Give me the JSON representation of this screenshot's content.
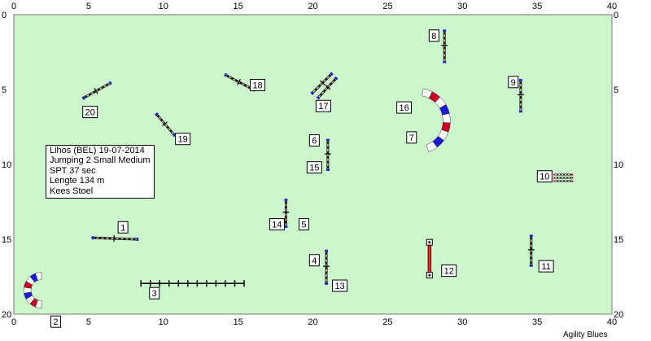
{
  "course": {
    "bg_color": "#ccf7cc",
    "x_range": [
      0,
      40
    ],
    "y_range": [
      0,
      20
    ],
    "x_ticks": [
      "0",
      "5",
      "10",
      "15",
      "20",
      "25",
      "30",
      "35",
      "40"
    ],
    "y_ticks": [
      "0",
      "5",
      "10",
      "15",
      "20"
    ]
  },
  "info": {
    "line1": "Lihos (BEL) 19-07-2014",
    "line2": "Jumping 2 Small Medium",
    "line3": "SPT 37 sec",
    "line4": "Lengte 134 m",
    "line5": "Kees Stoel"
  },
  "credit": "Agility Blues",
  "obstacles": [
    {
      "type": "jump",
      "x1": 5.2,
      "y1": 14.9,
      "x2": 8.2,
      "y2": 15.0
    },
    {
      "type": "jump",
      "x1": 4.6,
      "y1": 5.6,
      "x2": 6.4,
      "y2": 4.6
    },
    {
      "type": "jump",
      "x1": 9.5,
      "y1": 6.6,
      "x2": 10.7,
      "y2": 8.0
    },
    {
      "type": "jump",
      "x1": 14.1,
      "y1": 4.0,
      "x2": 16.0,
      "y2": 5.0
    },
    {
      "type": "jump",
      "x1": 18.2,
      "y1": 12.3,
      "x2": 18.2,
      "y2": 14.1
    },
    {
      "type": "jump",
      "x1": 21.0,
      "y1": 8.3,
      "x2": 21.0,
      "y2": 10.3
    },
    {
      "type": "jump",
      "x1": 20.9,
      "y1": 15.7,
      "x2": 20.9,
      "y2": 17.9
    },
    {
      "type": "jump",
      "x1": 28.8,
      "y1": 1.0,
      "x2": 28.8,
      "y2": 3.1
    },
    {
      "type": "jump",
      "x1": 33.9,
      "y1": 4.3,
      "x2": 33.9,
      "y2": 6.4
    },
    {
      "type": "jump",
      "x1": 34.6,
      "y1": 14.7,
      "x2": 34.6,
      "y2": 16.7
    },
    {
      "type": "jump",
      "x1": 21.3,
      "y1": 3.9,
      "x2": 20.0,
      "y2": 5.2
    },
    {
      "type": "jump",
      "x1": 21.6,
      "y1": 4.2,
      "x2": 20.4,
      "y2": 5.5
    },
    {
      "type": "tyre",
      "x1": 36.2,
      "y1": 10.9,
      "x2": 37.3,
      "y2": 10.9
    },
    {
      "type": "walk",
      "x1": 27.8,
      "y1": 15.2,
      "x2": 27.8,
      "y2": 17.4
    }
  ],
  "weave": {
    "x1": 8.5,
    "x2": 15.4,
    "y": 17.95,
    "poles": 12
  },
  "tunnels": [
    {
      "cx": 27.0,
      "cy": 7.1,
      "r": 1.95,
      "a0": -80,
      "a1": 70
    },
    {
      "cx": 1.85,
      "cy": 18.4,
      "r": 0.95,
      "a0": 90,
      "a1": 270
    }
  ],
  "labels": [
    {
      "n": "1",
      "x": 7.3,
      "y": 14.2
    },
    {
      "n": "2",
      "x": 2.8,
      "y": 20.5
    },
    {
      "n": "3",
      "x": 9.4,
      "y": 18.6
    },
    {
      "n": "4",
      "x": 20.1,
      "y": 16.4
    },
    {
      "n": "5",
      "x": 19.4,
      "y": 14.0
    },
    {
      "n": "6",
      "x": 20.1,
      "y": 8.4
    },
    {
      "n": "7",
      "x": 26.6,
      "y": 8.2
    },
    {
      "n": "8",
      "x": 28.1,
      "y": 1.4
    },
    {
      "n": "9",
      "x": 33.4,
      "y": 4.5
    },
    {
      "n": "10",
      "x": 35.5,
      "y": 10.8
    },
    {
      "n": "11",
      "x": 35.6,
      "y": 16.8
    },
    {
      "n": "12",
      "x": 29.1,
      "y": 17.1
    },
    {
      "n": "13",
      "x": 21.8,
      "y": 18.1
    },
    {
      "n": "14",
      "x": 17.6,
      "y": 14.0
    },
    {
      "n": "15",
      "x": 20.1,
      "y": 10.2
    },
    {
      "n": "16",
      "x": 26.1,
      "y": 6.2
    },
    {
      "n": "17",
      "x": 20.7,
      "y": 6.1
    },
    {
      "n": "18",
      "x": 16.3,
      "y": 4.7
    },
    {
      "n": "19",
      "x": 11.3,
      "y": 8.3
    },
    {
      "n": "20",
      "x": 5.1,
      "y": 6.5
    }
  ]
}
